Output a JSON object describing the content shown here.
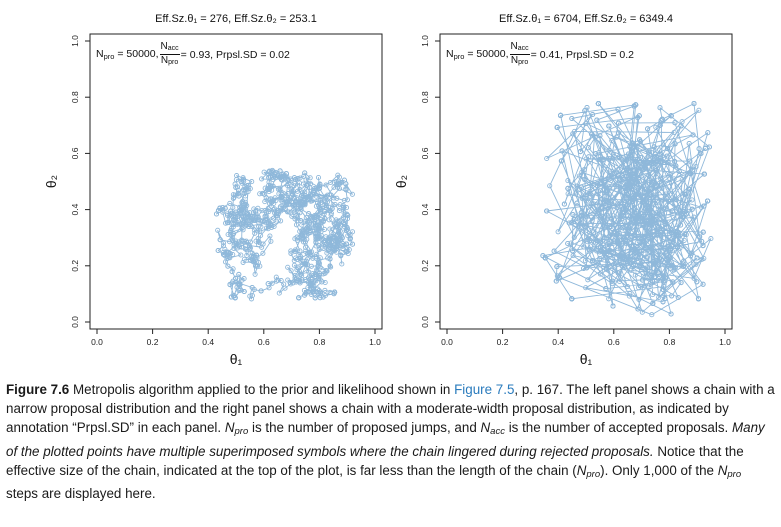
{
  "chart_data": [
    {
      "type": "scatter",
      "title": "Eff.Sz.θ₁ = 276, Eff.Sz.θ₂ = 253.1",
      "annotation": {
        "npro": "N<sub>pro</sub> = 50000,",
        "frac_num": "N<sub>acc</sub>",
        "frac_den": "N<sub>pro</sub>",
        "rest": " = 0.93, Prpsl.SD = 0.02"
      },
      "xlabel": "θ₁",
      "ylabel": "θ₂",
      "xlim": [
        0,
        1
      ],
      "ylim": [
        0,
        1
      ],
      "xticks": [
        "0.0",
        "0.2",
        "0.4",
        "0.6",
        "0.8",
        "1.0"
      ],
      "yticks": [
        "0.0",
        "0.2",
        "0.4",
        "0.6",
        "0.8",
        "1.0"
      ],
      "series": [
        {
          "chain_start": [
            0.72,
            0.36
          ],
          "step_sd": 0.02,
          "n_points": 1000,
          "region_x": [
            0.42,
            0.92
          ],
          "region_y": [
            0.08,
            0.54
          ]
        }
      ],
      "point_color": "#8fb8da"
    },
    {
      "type": "scatter",
      "title": "Eff.Sz.θ₁ = 6704, Eff.Sz.θ₂ = 6349.4",
      "annotation": {
        "npro": "N<sub>pro</sub> = 50000,",
        "frac_num": "N<sub>acc</sub>",
        "frac_den": "N<sub>pro</sub>",
        "rest": " = 0.41, Prpsl.SD = 0.2"
      },
      "xlabel": "θ₁",
      "ylabel": "θ₂",
      "xlim": [
        0,
        1
      ],
      "ylim": [
        0,
        1
      ],
      "xticks": [
        "0.0",
        "0.2",
        "0.4",
        "0.6",
        "0.8",
        "1.0"
      ],
      "yticks": [
        "0.0",
        "0.2",
        "0.4",
        "0.6",
        "0.8",
        "1.0"
      ],
      "series": [
        {
          "chain_start": [
            0.68,
            0.33
          ],
          "step_sd": 0.2,
          "n_points": 1000,
          "region_x": [
            0.34,
            0.96
          ],
          "region_y": [
            0.02,
            0.78
          ]
        }
      ],
      "point_color": "#8fb8da"
    }
  ],
  "caption": {
    "label": "Figure 7.6",
    "html": "Metropolis algorithm applied to the prior and likelihood shown in <span class=\"ref\">Figure 7.5</span>, p. 167. The left panel shows a chain with a narrow proposal distribution and the right panel shows a chain with a moderate-width proposal distribution, as indicated by annotation “Prpsl.SD” in each panel. <i>N<sub>pro</sub></i> is the number of proposed jumps, and <i>N<sub>acc</sub></i> is the number of accepted proposals. <i>Many of the plotted points have multiple superimposed symbols where the chain lingered during rejected proposals.</i> Notice that the effective size of the chain, indicated at the top of the plot, is far less than the length of the chain (<i>N<sub>pro</sub></i>). Only 1,000 of the <i>N<sub>pro</sub></i> steps are displayed here."
  }
}
